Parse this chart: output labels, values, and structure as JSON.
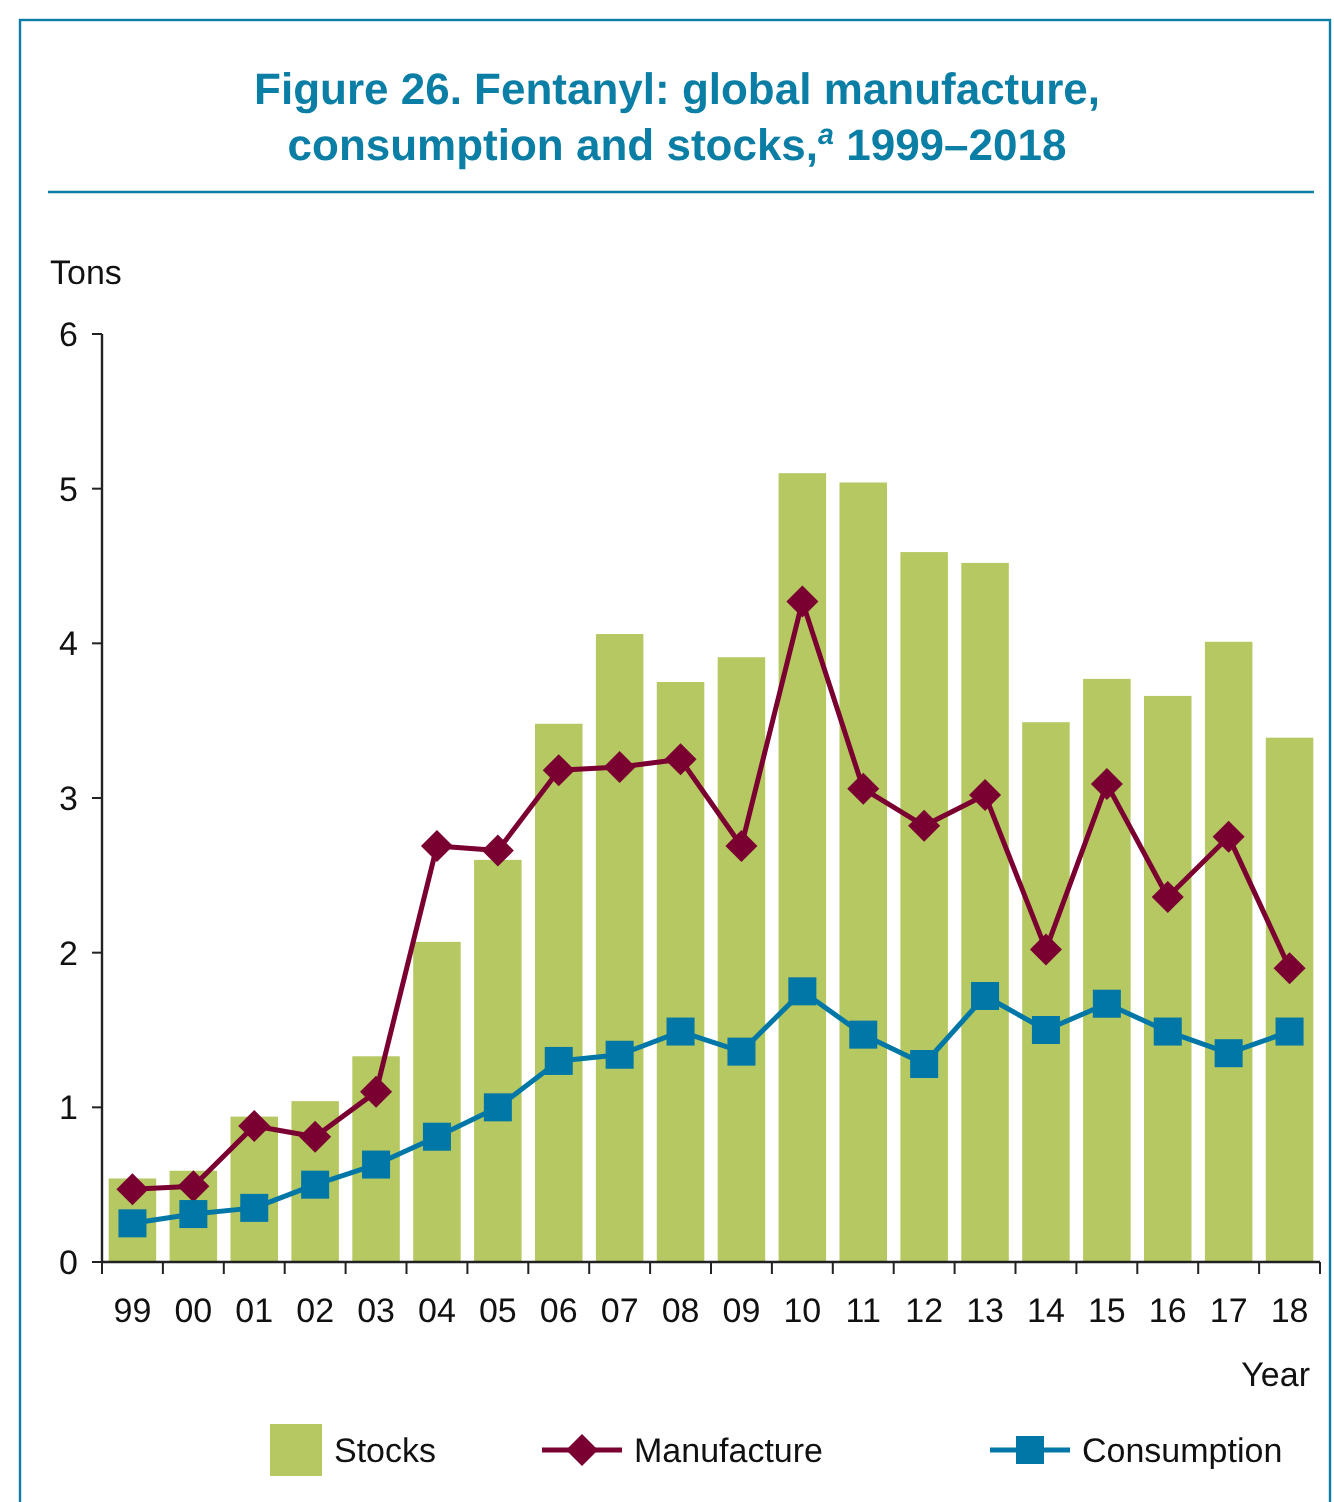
{
  "chart_data": {
    "type": "bar",
    "title": "Figure 26.   Fentanyl: global manufacture,\nconsumption and stocks,$^{a}$ 1999–2018",
    "xlabel": "Year",
    "ylabel": "Tons",
    "categories": [
      "99",
      "00",
      "01",
      "02",
      "03",
      "04",
      "05",
      "06",
      "07",
      "08",
      "09",
      "10",
      "11",
      "12",
      "13",
      "14",
      "15",
      "16",
      "17",
      "18"
    ],
    "series": [
      {
        "name": "Stocks",
        "color": "#b5c862",
        "values": [
          0.54,
          0.59,
          0.94,
          1.04,
          1.33,
          2.07,
          2.6,
          3.48,
          4.06,
          3.75,
          3.91,
          5.1,
          5.04,
          4.59,
          4.52,
          3.49,
          3.77,
          3.66,
          4.01,
          3.39
        ]
      },
      {
        "name": "Manufacture",
        "type": "line",
        "color": "#7b0032",
        "marker": "diamond",
        "values": [
          0.47,
          0.49,
          0.88,
          0.81,
          1.1,
          2.69,
          2.66,
          3.18,
          3.2,
          3.25,
          2.69,
          4.27,
          3.06,
          2.82,
          3.02,
          2.02,
          3.09,
          2.36,
          2.75,
          1.9
        ]
      },
      {
        "name": "Consumption",
        "type": "line",
        "color": "#0077a6",
        "marker": "square",
        "values": [
          0.25,
          0.31,
          0.35,
          0.5,
          0.63,
          0.81,
          1.0,
          1.3,
          1.34,
          1.49,
          1.36,
          1.75,
          1.47,
          1.28,
          1.72,
          1.5,
          1.67,
          1.49,
          1.35,
          1.49
        ]
      }
    ],
    "ylim": [
      0,
      6
    ],
    "yticks": [
      0,
      1,
      2,
      3,
      4,
      5,
      6
    ],
    "legend": "bottom"
  }
}
